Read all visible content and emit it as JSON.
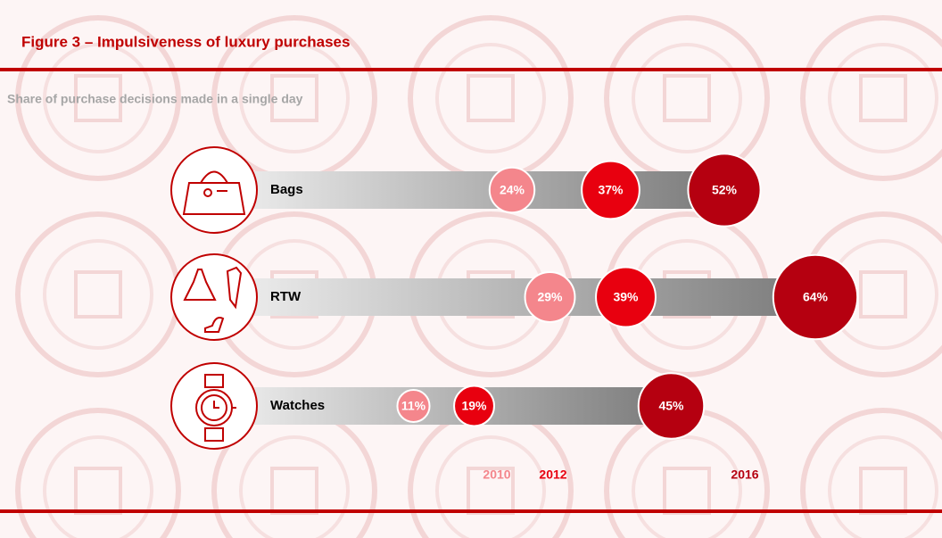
{
  "chart_data": {
    "type": "dot",
    "title": "Figure 3 – Impulsiveness of luxury purchases",
    "subtitle": "Share of purchase decisions made in a single day",
    "categories": [
      "Bags",
      "RTW",
      "Watches"
    ],
    "series": [
      {
        "name": "2010",
        "color": "#f4868c",
        "values": [
          24,
          29,
          11
        ],
        "value_labels": [
          "24%",
          "29%",
          "11%"
        ]
      },
      {
        "name": "2012",
        "color": "#e8000f",
        "values": [
          37,
          39,
          19
        ],
        "value_labels": [
          "37%",
          "39%",
          "19%"
        ]
      },
      {
        "name": "2016",
        "color": "#b50010",
        "values": [
          52,
          64,
          45
        ],
        "value_labels": [
          "52%",
          "64%",
          "45%"
        ]
      }
    ]
  }
}
